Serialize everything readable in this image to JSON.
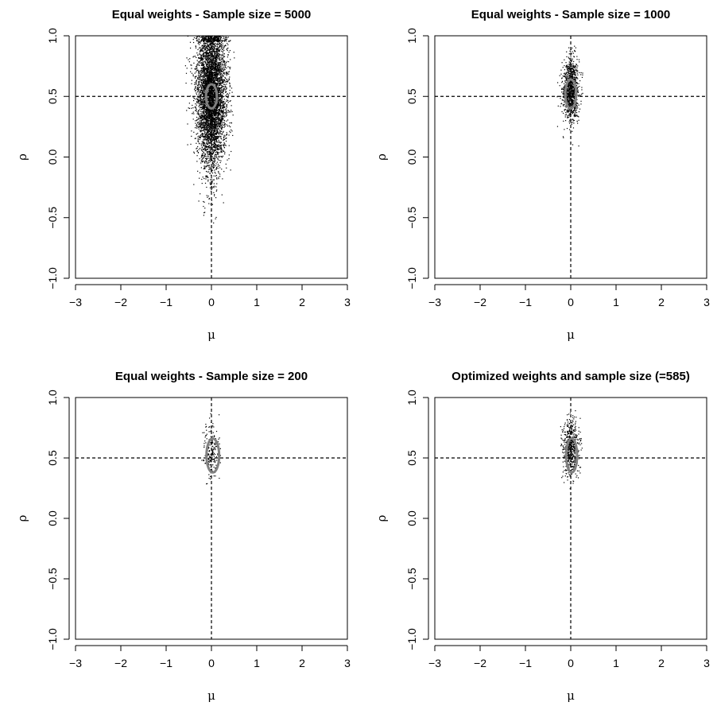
{
  "chart_data": [
    {
      "type": "scatter",
      "title": "Equal weights - Sample size = 5000",
      "xlabel": "μ",
      "ylabel": "ρ",
      "xlim": [
        -3,
        3
      ],
      "ylim": [
        -1,
        1
      ],
      "xticks": [
        -3,
        -2,
        -1,
        0,
        1,
        2,
        3
      ],
      "yticks": [
        -1.0,
        -0.5,
        0.0,
        0.5,
        1.0
      ],
      "xtick_labels": [
        "−3",
        "−2",
        "−1",
        "0",
        "1",
        "2",
        "3"
      ],
      "ytick_labels": [
        "−1.0",
        "−0.5",
        "0.0",
        "0.5",
        "1.0"
      ],
      "reference_lines": {
        "x": 0,
        "y": 0.5
      },
      "cloud": {
        "n": 5000,
        "mu_center": 0.0,
        "mu_sd": 0.16,
        "rho_center": 0.5,
        "rho_sd": 0.3,
        "rho_max": 1.0
      },
      "contour": {
        "mu_center": 0.0,
        "rho_center": 0.5,
        "mu_halfwidth": 0.12,
        "rho_halfwidth": 0.1
      },
      "point_color": "#000000",
      "contour_color": "#808080"
    },
    {
      "type": "scatter",
      "title": "Equal weights - Sample size = 1000",
      "xlabel": "μ",
      "ylabel": "ρ",
      "xlim": [
        -3,
        3
      ],
      "ylim": [
        -1,
        1
      ],
      "xticks": [
        -3,
        -2,
        -1,
        0,
        1,
        2,
        3
      ],
      "yticks": [
        -1.0,
        -0.5,
        0.0,
        0.5,
        1.0
      ],
      "xtick_labels": [
        "−3",
        "−2",
        "−1",
        "0",
        "1",
        "2",
        "3"
      ],
      "ytick_labels": [
        "−1.0",
        "−0.5",
        "0.0",
        "0.5",
        "1.0"
      ],
      "reference_lines": {
        "x": 0,
        "y": 0.5
      },
      "cloud": {
        "n": 1000,
        "mu_center": 0.0,
        "mu_sd": 0.09,
        "rho_center": 0.55,
        "rho_sd": 0.13,
        "rho_max": 0.95
      },
      "contour": {
        "mu_center": 0.0,
        "rho_center": 0.52,
        "mu_halfwidth": 0.12,
        "rho_halfwidth": 0.12
      },
      "point_color": "#000000",
      "contour_color": "#808080"
    },
    {
      "type": "scatter",
      "title": "Equal weights - Sample size = 200",
      "xlabel": "μ",
      "ylabel": "ρ",
      "xlim": [
        -3,
        3
      ],
      "ylim": [
        -1,
        1
      ],
      "xticks": [
        -3,
        -2,
        -1,
        0,
        1,
        2,
        3
      ],
      "yticks": [
        -1.0,
        -0.5,
        0.0,
        0.5,
        1.0
      ],
      "xtick_labels": [
        "−3",
        "−2",
        "−1",
        "0",
        "1",
        "2",
        "3"
      ],
      "ytick_labels": [
        "−1.0",
        "−0.5",
        "0.0",
        "0.5",
        "1.0"
      ],
      "reference_lines": {
        "x": 0,
        "y": 0.5
      },
      "cloud": {
        "n": 200,
        "mu_center": 0.0,
        "mu_sd": 0.09,
        "rho_center": 0.55,
        "rho_sd": 0.12,
        "rho_max": 0.9
      },
      "contour": {
        "mu_center": 0.03,
        "rho_center": 0.52,
        "mu_halfwidth": 0.14,
        "rho_halfwidth": 0.14
      },
      "point_color": "#000000",
      "contour_color": "#808080"
    },
    {
      "type": "scatter",
      "title": "Optimized weights and sample size (=585)",
      "xlabel": "μ",
      "ylabel": "ρ",
      "xlim": [
        -3,
        3
      ],
      "ylim": [
        -1,
        1
      ],
      "xticks": [
        -3,
        -2,
        -1,
        0,
        1,
        2,
        3
      ],
      "yticks": [
        -1.0,
        -0.5,
        0.0,
        0.5,
        1.0
      ],
      "xtick_labels": [
        "−3",
        "−2",
        "−1",
        "0",
        "1",
        "2",
        "3"
      ],
      "ytick_labels": [
        "−1.0",
        "−0.5",
        "0.0",
        "0.5",
        "1.0"
      ],
      "reference_lines": {
        "x": 0,
        "y": 0.5
      },
      "cloud": {
        "n": 585,
        "mu_center": 0.0,
        "mu_sd": 0.09,
        "rho_center": 0.57,
        "rho_sd": 0.12,
        "rho_max": 0.92
      },
      "contour": {
        "mu_center": 0.02,
        "rho_center": 0.52,
        "mu_halfwidth": 0.12,
        "rho_halfwidth": 0.14
      },
      "point_color": "#000000",
      "contour_color": "#808080"
    }
  ]
}
